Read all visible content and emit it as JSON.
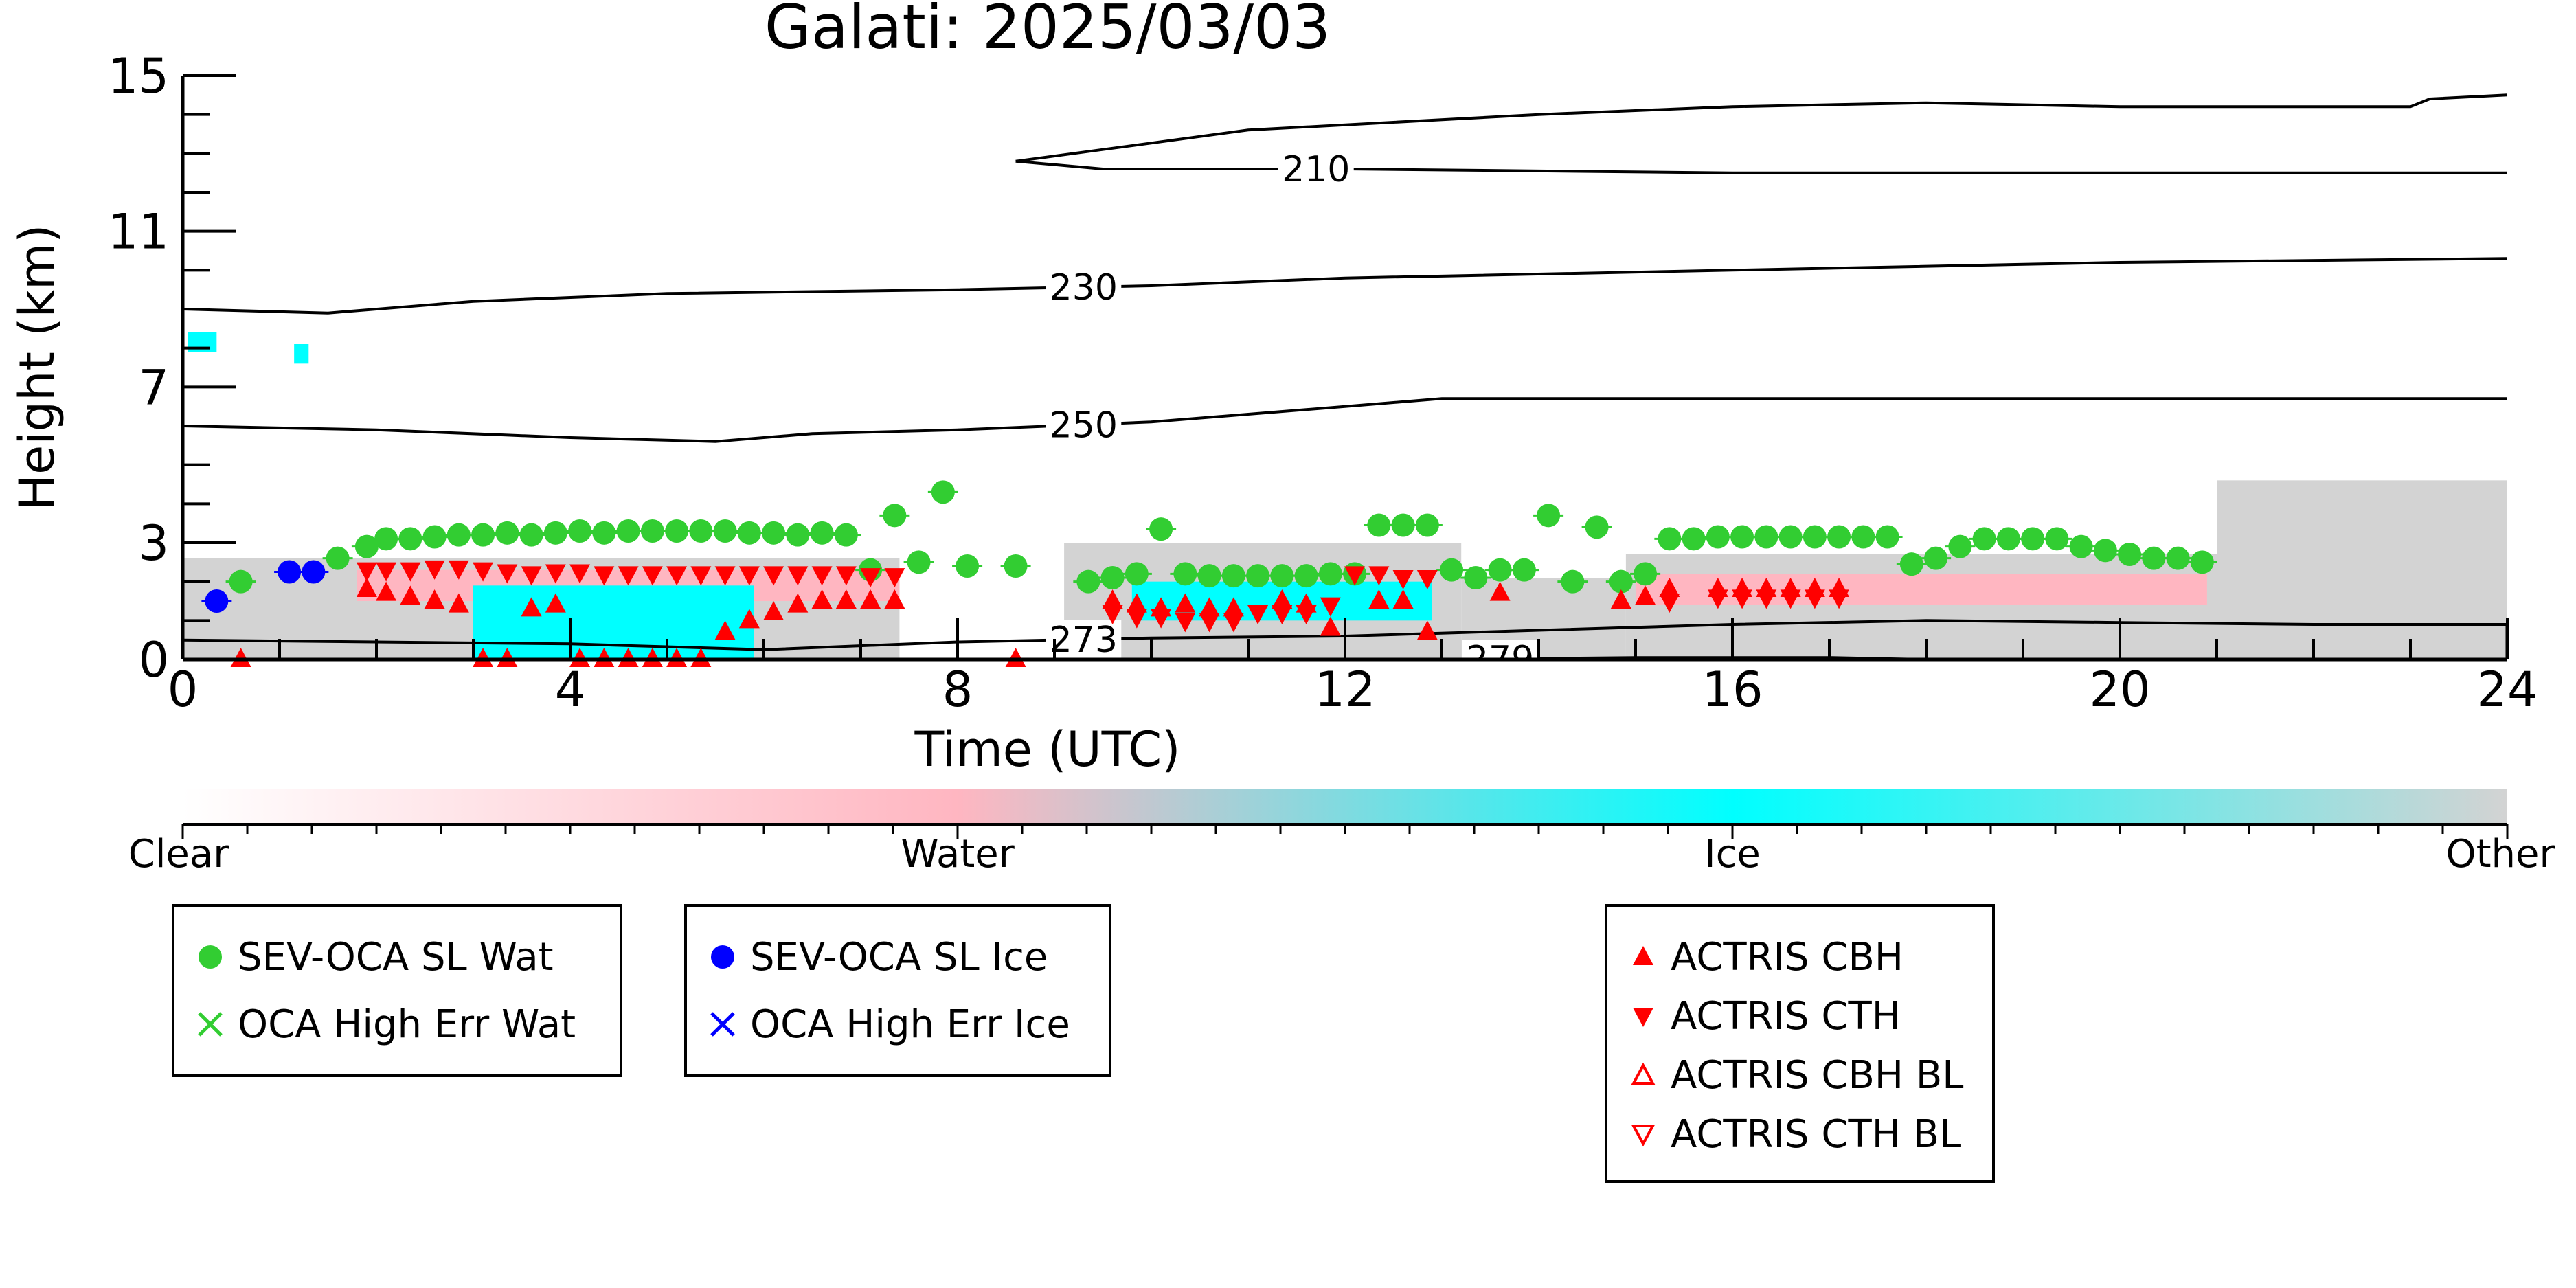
{
  "chart_data": {
    "type": "scatter",
    "title": "Galati: 2025/03/03",
    "xlabel": "Time (UTC)",
    "ylabel": "Height (km)",
    "xlim": [
      0,
      24
    ],
    "ylim": [
      0,
      15
    ],
    "x_ticks": [
      0,
      4,
      8,
      12,
      16,
      20,
      24
    ],
    "y_ticks": [
      0,
      3,
      7,
      11,
      15
    ],
    "colorbar": {
      "labels": [
        "Clear",
        "Water",
        "Ice",
        "Other"
      ],
      "colors": [
        "#ffffff",
        "#ffb6c1",
        "#00ffff",
        "#d3d3d3"
      ]
    },
    "contours": [
      {
        "label": "210",
        "points": [
          [
            8.6,
            12.8
          ],
          [
            9.5,
            12.6
          ],
          [
            12,
            12.6
          ],
          [
            16,
            12.5
          ],
          [
            20,
            12.5
          ],
          [
            24,
            12.5
          ]
        ]
      },
      {
        "label": "210",
        "points": [
          [
            8.6,
            12.8
          ],
          [
            9.5,
            13.1
          ],
          [
            11,
            13.6
          ],
          [
            14,
            14.0
          ],
          [
            16,
            14.2
          ],
          [
            18,
            14.3
          ],
          [
            20,
            14.2
          ],
          [
            23,
            14.2
          ],
          [
            23.2,
            14.4
          ],
          [
            24,
            14.5
          ]
        ]
      },
      {
        "label": "230",
        "points": [
          [
            0,
            9.0
          ],
          [
            1.5,
            8.9
          ],
          [
            3,
            9.2
          ],
          [
            5,
            9.4
          ],
          [
            8,
            9.5
          ],
          [
            10,
            9.6
          ],
          [
            12,
            9.8
          ],
          [
            16,
            10.0
          ],
          [
            20,
            10.2
          ],
          [
            24,
            10.3
          ]
        ]
      },
      {
        "label": "250",
        "points": [
          [
            0,
            6.0
          ],
          [
            2,
            5.9
          ],
          [
            4,
            5.7
          ],
          [
            5.5,
            5.6
          ],
          [
            6.5,
            5.8
          ],
          [
            8,
            5.9
          ],
          [
            10,
            6.1
          ],
          [
            12,
            6.5
          ],
          [
            13,
            6.7
          ],
          [
            16,
            6.7
          ],
          [
            20,
            6.7
          ],
          [
            24,
            6.7
          ]
        ]
      },
      {
        "label": "273",
        "points": [
          [
            0,
            0.5
          ],
          [
            4,
            0.4
          ],
          [
            6,
            0.25
          ],
          [
            8,
            0.45
          ],
          [
            10,
            0.55
          ],
          [
            12,
            0.6
          ],
          [
            14,
            0.75
          ],
          [
            16,
            0.9
          ],
          [
            18,
            1.0
          ],
          [
            20,
            0.95
          ],
          [
            22,
            0.9
          ],
          [
            24,
            0.9
          ]
        ]
      },
      {
        "label": "279",
        "points": [
          [
            13.0,
            0.0
          ],
          [
            15,
            0.05
          ],
          [
            17,
            0.05
          ],
          [
            18,
            0.0
          ]
        ]
      }
    ],
    "contour_label_positions": [
      {
        "label": "210",
        "x": 11.7
      },
      {
        "label": "230",
        "x": 9.3
      },
      {
        "label": "250",
        "x": 9.3
      },
      {
        "label": "273",
        "x": 9.3
      },
      {
        "label": "279",
        "x": 13.6
      }
    ],
    "series": [
      {
        "name": "SEV-OCA SL Wat",
        "marker": "filled-circle",
        "color": "#32cd32",
        "x": [
          0.6,
          1.6,
          1.9,
          2.1,
          2.35,
          2.6,
          2.85,
          3.1,
          3.35,
          3.6,
          3.85,
          4.1,
          4.35,
          4.6,
          4.85,
          5.1,
          5.35,
          5.6,
          5.85,
          6.1,
          6.35,
          6.6,
          6.85,
          7.1,
          7.35,
          7.6,
          7.85,
          8.1,
          8.6,
          9.35,
          9.6,
          9.85,
          10.1,
          10.35,
          10.6,
          10.85,
          11.1,
          11.35,
          11.6,
          11.85,
          12.1,
          12.35,
          12.6,
          12.85,
          13.1,
          13.35,
          13.6,
          13.85,
          14.1,
          14.35,
          14.6,
          14.85,
          15.1,
          15.35,
          15.6,
          15.85,
          16.1,
          16.35,
          16.6,
          16.85,
          17.1,
          17.35,
          17.6,
          17.85,
          18.1,
          18.35,
          18.6,
          18.85,
          19.1,
          19.35,
          19.6,
          19.85,
          20.1,
          20.35,
          20.6,
          20.85
        ],
        "y": [
          2.0,
          2.6,
          2.9,
          3.1,
          3.1,
          3.15,
          3.2,
          3.2,
          3.25,
          3.2,
          3.25,
          3.3,
          3.25,
          3.3,
          3.3,
          3.3,
          3.3,
          3.3,
          3.25,
          3.25,
          3.2,
          3.25,
          3.2,
          2.3,
          3.7,
          2.5,
          4.3,
          2.4,
          2.4,
          2.0,
          2.1,
          2.2,
          3.35,
          2.2,
          2.15,
          2.15,
          2.15,
          2.15,
          2.15,
          2.2,
          2.2,
          3.45,
          3.45,
          3.45,
          2.3,
          2.1,
          2.3,
          2.3,
          3.7,
          2.0,
          3.4,
          2.0,
          2.2,
          3.1,
          3.1,
          3.15,
          3.15,
          3.15,
          3.15,
          3.15,
          3.15,
          3.15,
          3.15,
          2.45,
          2.6,
          2.9,
          3.1,
          3.1,
          3.1,
          3.1,
          2.9,
          2.8,
          2.7,
          2.6,
          2.6,
          2.5
        ]
      },
      {
        "name": "OCA High Err Wat",
        "marker": "x",
        "color": "#32cd32",
        "x": [],
        "y": []
      },
      {
        "name": "SEV-OCA SL Ice",
        "marker": "filled-circle",
        "color": "#0000ff",
        "x": [
          0.35,
          1.1,
          1.35
        ],
        "y": [
          1.5,
          2.25,
          2.25
        ]
      },
      {
        "name": "OCA High Err Ice",
        "marker": "x",
        "color": "#0000ff",
        "x": [],
        "y": []
      },
      {
        "name": "ACTRIS CBH",
        "marker": "filled-triangle-up",
        "color": "#ff0000",
        "x": [
          0.6,
          1.9,
          2.1,
          2.35,
          2.6,
          2.85,
          3.1,
          3.35,
          3.6,
          3.85,
          4.1,
          4.35,
          4.6,
          4.85,
          5.1,
          5.35,
          5.6,
          5.85,
          6.1,
          6.35,
          6.6,
          6.85,
          7.1,
          7.35,
          8.6,
          9.6,
          9.85,
          10.1,
          10.35,
          10.6,
          10.85,
          11.35,
          11.6,
          11.85,
          12.35,
          12.6,
          12.85,
          13.6,
          14.85,
          15.1,
          15.35,
          15.85,
          16.1,
          16.35,
          16.6,
          16.85,
          17.1
        ],
        "y": [
          0.0,
          1.8,
          1.7,
          1.6,
          1.5,
          1.4,
          0.0,
          0.0,
          1.3,
          1.4,
          0.0,
          0.0,
          0.0,
          0.0,
          0.0,
          0.0,
          0.7,
          1.0,
          1.2,
          1.4,
          1.5,
          1.5,
          1.5,
          1.5,
          0.0,
          1.5,
          1.4,
          1.3,
          1.4,
          1.3,
          1.3,
          1.5,
          1.4,
          0.8,
          1.5,
          1.5,
          0.7,
          1.7,
          1.5,
          1.6,
          1.8,
          1.8,
          1.8,
          1.8,
          1.8,
          1.8,
          1.8
        ]
      },
      {
        "name": "ACTRIS CTH",
        "marker": "filled-triangle-down",
        "color": "#ff0000",
        "x": [
          1.9,
          2.1,
          2.35,
          2.6,
          2.85,
          3.1,
          3.35,
          3.6,
          3.85,
          4.1,
          4.35,
          4.6,
          4.85,
          5.1,
          5.35,
          5.6,
          5.85,
          6.1,
          6.35,
          6.6,
          6.85,
          7.1,
          7.35,
          9.6,
          9.85,
          10.1,
          10.35,
          10.6,
          10.85,
          11.1,
          11.35,
          11.6,
          11.85,
          12.1,
          12.35,
          12.6,
          12.85,
          15.35,
          15.85,
          16.1,
          16.35,
          16.6,
          16.85,
          17.1
        ],
        "y": [
          2.3,
          2.3,
          2.3,
          2.35,
          2.35,
          2.3,
          2.25,
          2.2,
          2.25,
          2.25,
          2.2,
          2.2,
          2.2,
          2.2,
          2.2,
          2.2,
          2.2,
          2.2,
          2.2,
          2.2,
          2.2,
          2.15,
          2.15,
          1.2,
          1.1,
          1.1,
          1.0,
          1.0,
          1.0,
          1.2,
          1.2,
          1.2,
          1.4,
          2.2,
          2.2,
          2.1,
          2.1,
          1.5,
          1.6,
          1.6,
          1.6,
          1.6,
          1.6,
          1.6
        ]
      },
      {
        "name": "ACTRIS CBH BL",
        "marker": "open-triangle-up",
        "color": "#ff0000",
        "x": [],
        "y": []
      },
      {
        "name": "ACTRIS CTH BL",
        "marker": "open-triangle-down",
        "color": "#ff0000",
        "x": [],
        "y": []
      }
    ]
  },
  "legends": [
    {
      "items": [
        {
          "label": "SEV-OCA SL Wat",
          "symbol": "filled-circle",
          "color": "#32cd32"
        },
        {
          "label": "OCA High Err Wat",
          "symbol": "x",
          "color": "#32cd32"
        }
      ]
    },
    {
      "items": [
        {
          "label": "SEV-OCA SL Ice",
          "symbol": "filled-circle",
          "color": "#0000ff"
        },
        {
          "label": "OCA High Err Ice",
          "symbol": "x",
          "color": "#0000ff"
        }
      ]
    },
    {
      "items": [
        {
          "label": "ACTRIS CBH",
          "symbol": "filled-triangle-up",
          "color": "#ff0000"
        },
        {
          "label": "ACTRIS CTH",
          "symbol": "filled-triangle-down",
          "color": "#ff0000"
        },
        {
          "label": "ACTRIS CBH BL",
          "symbol": "open-triangle-up",
          "color": "#ff0000"
        },
        {
          "label": "ACTRIS CTH BL",
          "symbol": "open-triangle-down",
          "color": "#ff0000"
        }
      ]
    }
  ]
}
